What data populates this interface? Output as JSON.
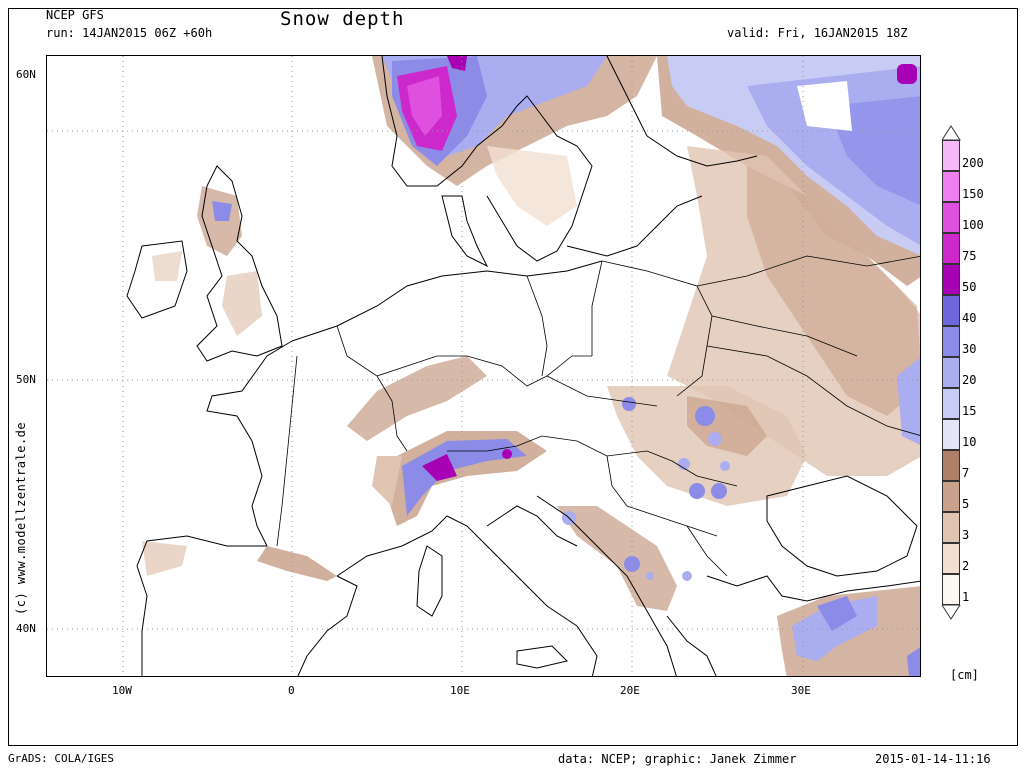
{
  "header": {
    "model": "NCEP GFS",
    "run": "run: 14JAN2015 06Z +60h",
    "title": "Snow depth",
    "valid": "valid: Fri, 16JAN2015 18Z"
  },
  "axes": {
    "lat_labels": [
      "60N",
      "50N",
      "40N"
    ],
    "lon_labels": [
      "10W",
      "0",
      "10E",
      "20E",
      "30E"
    ]
  },
  "legend": {
    "unit": "[cm]",
    "levels": [
      "1",
      "2",
      "3",
      "5",
      "7",
      "10",
      "15",
      "20",
      "30",
      "40",
      "50",
      "75",
      "100",
      "150",
      "200"
    ],
    "colors": [
      "#fcf8f4",
      "#f1e0d2",
      "#e0c4b2",
      "#c9a28c",
      "#ae806a",
      "#e4e6f8",
      "#c8ccf4",
      "#aaadf0",
      "#8c8ce8",
      "#6e68dc",
      "#a800b4",
      "#cc28cc",
      "#e050e0",
      "#ec80ec",
      "#f6b8f6"
    ]
  },
  "credit": "(c) www.modellzentrale.de",
  "footer": {
    "left": "GrADS: COLA/IGES",
    "center": "data: NCEP; graphic: Janek Zimmer",
    "right": "2015-01-14-11:16"
  }
}
